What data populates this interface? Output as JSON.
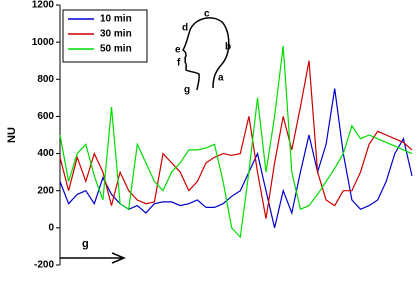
{
  "chart_data": {
    "type": "line",
    "y_label": "NU",
    "categories": [
      null,
      null,
      null,
      null,
      null,
      null,
      null,
      null,
      null,
      null,
      null,
      null,
      null,
      null,
      null,
      null,
      null,
      null,
      null,
      null,
      null,
      null,
      null,
      null,
      null,
      null,
      null,
      null,
      null,
      null,
      null,
      null,
      null,
      null,
      null,
      null,
      null,
      null,
      null,
      null,
      null,
      null
    ],
    "series": [
      {
        "name": "10 min",
        "color": "#0000cc",
        "values": [
          250,
          130,
          180,
          200,
          130,
          270,
          180,
          130,
          100,
          120,
          80,
          130,
          140,
          140,
          120,
          130,
          150,
          110,
          110,
          130,
          170,
          200,
          300,
          400,
          200,
          0,
          200,
          80,
          300,
          500,
          300,
          450,
          750,
          400,
          150,
          100,
          120,
          150,
          250,
          400,
          480,
          280
        ]
      },
      {
        "name": "30 min",
        "color": "#cc0000",
        "values": [
          380,
          200,
          380,
          250,
          400,
          300,
          120,
          300,
          200,
          150,
          130,
          140,
          400,
          350,
          300,
          200,
          250,
          350,
          380,
          400,
          390,
          400,
          600,
          300,
          50,
          350,
          600,
          420,
          650,
          900,
          300,
          150,
          120,
          200,
          200,
          300,
          450,
          520,
          500,
          480,
          460,
          420
        ]
      },
      {
        "name": "50 min",
        "color": "#00dd00",
        "values": [
          500,
          250,
          400,
          450,
          280,
          150,
          650,
          130,
          100,
          450,
          350,
          250,
          200,
          300,
          350,
          420,
          420,
          430,
          450,
          250,
          0,
          -50,
          300,
          700,
          300,
          600,
          980,
          300,
          100,
          120,
          180,
          250,
          320,
          400,
          550,
          480,
          500,
          480,
          460,
          440,
          420,
          400
        ]
      }
    ],
    "ylim": [
      -200,
      1200
    ],
    "yticks": [
      -200,
      0,
      200,
      400,
      600,
      800,
      1000,
      1200
    ],
    "head_labels": [
      "a",
      "b",
      "c",
      "d",
      "e",
      "f",
      "g"
    ],
    "arrow_label": "g",
    "legend": "upper left"
  }
}
